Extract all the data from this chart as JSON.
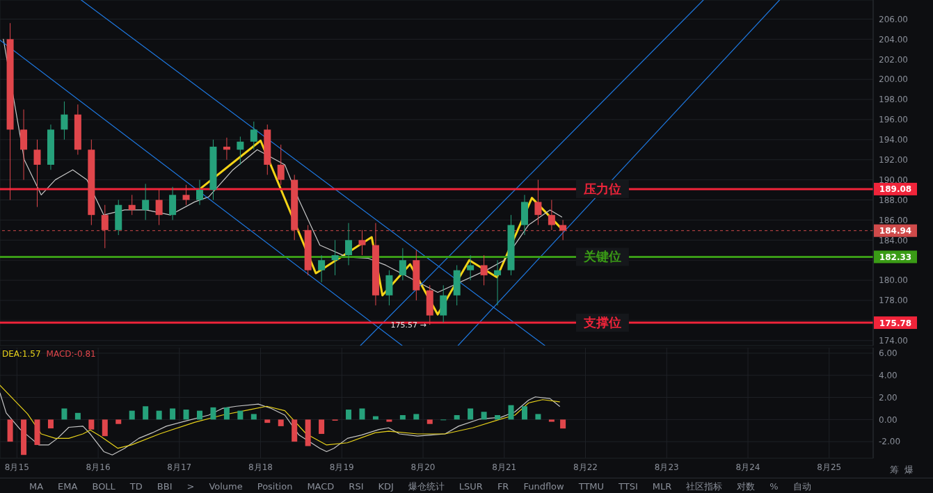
{
  "chart_data": [
    {
      "type": "candlestick",
      "x": [
        "--08-14T22:00",
        "--08-15T02:00",
        "--08-15T06:00",
        "--08-15T10:00",
        "--08-15T14:00",
        "--08-15T18:00",
        "--08-15T22:00",
        "--08-16T02:00",
        "--08-16T06:00",
        "--08-16T10:00",
        "--08-16T14:00",
        "--08-16T18:00",
        "--08-16T22:00",
        "--08-17T02:00",
        "--08-17T06:00",
        "--08-17T10:00",
        "--08-17T14:00",
        "--08-17T18:00",
        "--08-17T22:00",
        "--08-18T02:00",
        "--08-18T06:00",
        "--08-18T10:00",
        "--08-18T14:00",
        "--08-18T18:00",
        "--08-18T22:00",
        "--08-19T02:00",
        "--08-19T06:00",
        "--08-19T10:00",
        "--08-19T14:00",
        "--08-19T18:00",
        "--08-19T22:00",
        "--08-20T02:00",
        "--08-20T06:00",
        "--08-20T10:00",
        "--08-20T14:00",
        "--08-20T18:00",
        "--08-20T22:00",
        "--08-21T02:00",
        "--08-21T06:00",
        "--08-21T10:00",
        "--08-21T14:00",
        "--08-21T17:20"
      ],
      "ohlc": [
        [
          204,
          205.6,
          188,
          195
        ],
        [
          195,
          197,
          190,
          193
        ],
        [
          193,
          194,
          187.3,
          191.5
        ],
        [
          191.5,
          195.5,
          191,
          195
        ],
        [
          195,
          197.8,
          194,
          196.5
        ],
        [
          196.5,
          197.5,
          192.5,
          193
        ],
        [
          193,
          194,
          185.5,
          186.5
        ],
        [
          186.5,
          187.5,
          183.2,
          185
        ],
        [
          185,
          188,
          184.5,
          187.5
        ],
        [
          187.5,
          188.5,
          186.5,
          187
        ],
        [
          187,
          189.6,
          186,
          188
        ],
        [
          188,
          189,
          185.5,
          186.5
        ],
        [
          186.5,
          189.3,
          186,
          188.5
        ],
        [
          188.5,
          189.5,
          187.5,
          188
        ],
        [
          188,
          190,
          187.5,
          189
        ],
        [
          189,
          194,
          188,
          193.3
        ],
        [
          193.3,
          194.2,
          192,
          193
        ],
        [
          193,
          194.3,
          191.5,
          193.8
        ],
        [
          193.8,
          195.8,
          193,
          195
        ],
        [
          195,
          195.5,
          190.5,
          191.5
        ],
        [
          191.5,
          193.5,
          189.5,
          190
        ],
        [
          190,
          190.5,
          184,
          185
        ],
        [
          185,
          185.5,
          180.5,
          181
        ],
        [
          181,
          182.5,
          179.8,
          182
        ],
        [
          182,
          184,
          180.5,
          182.5
        ],
        [
          182.5,
          185.7,
          181.5,
          184
        ],
        [
          184,
          185,
          182.5,
          183.5
        ],
        [
          183.5,
          185.7,
          177.5,
          178.5
        ],
        [
          178.5,
          181,
          177.5,
          180.5
        ],
        [
          180.5,
          183.2,
          180,
          182
        ],
        [
          182,
          183,
          178,
          179
        ],
        [
          179,
          179.5,
          175.57,
          176.5
        ],
        [
          176.5,
          179.5,
          175.8,
          178.5
        ],
        [
          178.5,
          181.5,
          177.5,
          181
        ],
        [
          181,
          182.5,
          180,
          181.5
        ],
        [
          181.5,
          182.5,
          179.5,
          180.5
        ],
        [
          180.5,
          182,
          177.5,
          181
        ],
        [
          181,
          186.5,
          180.5,
          185.5
        ],
        [
          185.5,
          188.5,
          184.5,
          187.8
        ],
        [
          187.8,
          190,
          185.5,
          186.5
        ],
        [
          186.5,
          188,
          185,
          185.5
        ],
        [
          185.5,
          186,
          184,
          184.94
        ]
      ],
      "colors": [
        "#e0464b",
        "#e0464b",
        "#e0464b",
        "#26a17b",
        "#26a17b",
        "#e0464b",
        "#e0464b",
        "#e0464b",
        "#26a17b",
        "#e0464b",
        "#26a17b",
        "#e0464b",
        "#26a17b",
        "#e0464b",
        "#26a17b",
        "#26a17b",
        "#e0464b",
        "#26a17b",
        "#26a17b",
        "#e0464b",
        "#e0464b",
        "#e0464b",
        "#e0464b",
        "#26a17b",
        "#26a17b",
        "#26a17b",
        "#e0464b",
        "#e0464b",
        "#26a17b",
        "#26a17b",
        "#e0464b",
        "#e0464b",
        "#26a17b",
        "#26a17b",
        "#26a17b",
        "#e0464b",
        "#26a17b",
        "#26a17b",
        "#26a17b",
        "#e0464b",
        "#e0464b",
        "#e0464b"
      ],
      "series": [
        {
          "type": "line",
          "color": "#f5d416",
          "x": [
            "--08-17T06:30",
            "--08-18T00:00",
            "--08-18T16:20",
            "--08-19T08:50",
            "--08-19T12:00",
            "--08-19T20:10",
            "--08-20T04:20",
            "--08-20T13:40",
            "--08-20T21:50",
            "--08-21T08:10",
            "--08-21T17:00"
          ],
          "values": [
            189.2,
            193.9,
            180.7,
            184.3,
            178.5,
            181.6,
            176.6,
            182,
            180.3,
            188.2,
            185.1
          ]
        },
        {
          "type": "line",
          "color": "#c8c8c8",
          "x": [
            "--08-14T20:00",
            "--08-15T02:10",
            "--08-15T07:10",
            "--08-15T11:20",
            "--08-15T16:30",
            "--08-15T20:40",
            "--08-16T01:40",
            "--08-16T07:50",
            "--08-16T14:10",
            "--08-16T21:20",
            "--08-17T04:30",
            "--08-17T08:40",
            "--08-17T15:50",
            "--08-17T23:00",
            "--08-18T07:10",
            "--08-18T11:20",
            "--08-18T17:30",
            "--08-19T01:40",
            "--08-19T07:40",
            "--08-19T13:00",
            "--08-20T04:20",
            "--08-20T18:40",
            "--08-21T00:00",
            "--08-21T07:10",
            "--08-21T13:30",
            "--08-21T17:00"
          ],
          "values": [
            204,
            192,
            188.5,
            190,
            191,
            190,
            186.5,
            187,
            187,
            186.5,
            187.8,
            188.3,
            191,
            193,
            191.5,
            188,
            183.5,
            182.3,
            182.2,
            181.5,
            178.8,
            181,
            182,
            185.5,
            187,
            186.3
          ]
        },
        {
          "type": "line",
          "color": "#1e78e0",
          "x": [
            "--08-15T19:00",
            "--08-21T12:00"
          ],
          "values": [
            207.9,
            173.5
          ]
        },
        {
          "type": "line",
          "color": "#1e78e0",
          "x": [
            "--08-14T19:00",
            "--08-19T17:50"
          ],
          "values": [
            203.9,
            173.5
          ]
        },
        {
          "type": "line",
          "color": "#1e78e0",
          "x": [
            "--08-20T10:20",
            "--08-24T09:20"
          ],
          "values": [
            173.5,
            207.9
          ]
        },
        {
          "type": "line",
          "color": "#1e78e0",
          "x": [
            "--08-19T05:30",
            "--08-23T10:50"
          ],
          "values": [
            173.5,
            207.9
          ]
        }
      ],
      "ref_lines": [
        {
          "axis": "y",
          "value": 189.08,
          "label": "压力位",
          "color": "#f0243a"
        },
        {
          "axis": "y",
          "value": 184.94,
          "label": null,
          "color": "#cf4a4a",
          "line_style": "dashed"
        },
        {
          "axis": "y",
          "value": 182.33,
          "label": "关键位",
          "color": "#3a9b16"
        },
        {
          "axis": "y",
          "value": 175.78,
          "label": "支撑位",
          "color": "#f0243a"
        }
      ],
      "annotations": [
        {
          "text": "175.57 →",
          "x": "--08-20T02:00",
          "y": 175.57
        },
        "189.08",
        "184.94",
        "182.33",
        "175.78"
      ],
      "xlim": [
        "--08-14T19:00",
        "--08-25T13:00"
      ],
      "xticks": [
        {
          "value": "--08-15",
          "label": null
        },
        {
          "value": "--08-16",
          "label": null
        },
        {
          "value": "--08-17",
          "label": null
        },
        {
          "value": "--08-18",
          "label": null
        },
        {
          "value": "--08-19",
          "label": null
        },
        {
          "value": "--08-20",
          "label": null
        },
        {
          "value": "--08-21",
          "label": null
        },
        {
          "value": "--08-22",
          "label": null
        },
        {
          "value": "--08-23",
          "label": null
        },
        {
          "value": "--08-24",
          "label": null
        },
        {
          "value": "--08-25",
          "label": null
        }
      ],
      "ylim": [
        173.5,
        207.9
      ],
      "yticks": [
        {
          "value": 174,
          "label": "174.00"
        },
        {
          "value": 176,
          "label": null
        },
        {
          "value": 178,
          "label": "178.00"
        },
        {
          "value": 180,
          "label": "180.00"
        },
        {
          "value": 182,
          "label": null
        },
        {
          "value": 184,
          "label": "184.00"
        },
        {
          "value": 186,
          "label": "186.00"
        },
        {
          "value": 188,
          "label": "188.00"
        },
        {
          "value": 190,
          "label": "190.00"
        },
        {
          "value": 192,
          "label": "192.00"
        },
        {
          "value": 194,
          "label": "194.00"
        },
        {
          "value": 196,
          "label": "196.00"
        },
        {
          "value": 198,
          "label": "198.00"
        },
        {
          "value": 200,
          "label": "200.00"
        },
        {
          "value": 202,
          "label": "202.00"
        },
        {
          "value": 204,
          "label": "204.00"
        },
        {
          "value": 206,
          "label": "206.00"
        }
      ],
      "grid": true,
      "tick_labels": "y"
    },
    {
      "type": "bar",
      "x": [
        "--08-14T22:00",
        "--08-15T02:00",
        "--08-15T06:00",
        "--08-15T10:00",
        "--08-15T14:00",
        "--08-15T18:00",
        "--08-15T22:00",
        "--08-16T02:00",
        "--08-16T06:00",
        "--08-16T10:00",
        "--08-16T14:00",
        "--08-16T18:00",
        "--08-16T22:00",
        "--08-17T02:00",
        "--08-17T06:00",
        "--08-17T10:00",
        "--08-17T14:00",
        "--08-17T18:00",
        "--08-17T22:00",
        "--08-18T02:00",
        "--08-18T06:00",
        "--08-18T10:00",
        "--08-18T14:00",
        "--08-18T18:00",
        "--08-18T22:00",
        "--08-19T02:00",
        "--08-19T06:00",
        "--08-19T10:00",
        "--08-19T14:00",
        "--08-19T18:00",
        "--08-19T22:00",
        "--08-20T02:00",
        "--08-20T06:00",
        "--08-20T10:00",
        "--08-20T14:00",
        "--08-20T18:00",
        "--08-20T22:00",
        "--08-21T02:00",
        "--08-21T06:00",
        "--08-21T10:00",
        "--08-21T14:00",
        "--08-21T17:20"
      ],
      "values": [
        -2.0,
        -3.2,
        -2.3,
        -0.8,
        1.0,
        0.6,
        -0.9,
        -1.5,
        -0.4,
        0.8,
        1.2,
        0.8,
        1.0,
        0.9,
        0.8,
        1.1,
        1.1,
        0.8,
        0.5,
        -0.3,
        -0.6,
        -2.0,
        -2.4,
        -1.3,
        -0.1,
        0.9,
        1.0,
        0.3,
        -0.2,
        0.4,
        0.5,
        -0.4,
        0,
        0.4,
        1.0,
        0.7,
        0.4,
        1.3,
        1.2,
        0.5,
        -0.2,
        -0.81
      ],
      "colors": [
        "#e0464b",
        "#e0464b",
        "#e0464b",
        "#e0464b",
        "#26a17b",
        "#26a17b",
        "#e0464b",
        "#e0464b",
        "#e0464b",
        "#26a17b",
        "#26a17b",
        "#26a17b",
        "#26a17b",
        "#26a17b",
        "#26a17b",
        "#26a17b",
        "#26a17b",
        "#26a17b",
        "#26a17b",
        "#e0464b",
        "#e0464b",
        "#e0464b",
        "#e0464b",
        "#e0464b",
        "#e0464b",
        "#26a17b",
        "#26a17b",
        "#26a17b",
        "#e0464b",
        "#26a17b",
        "#26a17b",
        "#e0464b",
        "#26a17b",
        "#26a17b",
        "#26a17b",
        "#26a17b",
        "#26a17b",
        "#26a17b",
        "#26a17b",
        "#26a17b",
        "#e0464b",
        "#e0464b"
      ],
      "series": [
        {
          "type": "line",
          "color": "#c8c8c8",
          "x": [
            "--08-14T19:00",
            "--08-14T20:50",
            "--08-15T01:00",
            "--08-15T04:10",
            "--08-15T06:30",
            "--08-15T09:20",
            "--08-15T12:00",
            "--08-15T15:20",
            "--08-15T19:30",
            "--08-15T21:40",
            "--08-16T01:40",
            "--08-16T04:10",
            "--08-16T07:50",
            "--08-16T12:00",
            "--08-16T16:00",
            "--08-16T20:10",
            "--08-17T02:20",
            "--08-17T08:40",
            "--08-17T12:40",
            "--08-17T16:50",
            "--08-17T23:20",
            "--08-18T03:10",
            "--08-18T07:10",
            "--08-18T11:20",
            "--08-18T17:30",
            "--08-18T19:30",
            "--08-18T21:40",
            "--08-19T01:40",
            "--08-19T05:50",
            "--08-19T11:00",
            "--08-19T13:50",
            "--08-19T17:00",
            "--08-19T22:20",
            "--08-20T02:20",
            "--08-20T06:30",
            "--08-20T10:30",
            "--08-20T16:50",
            "--08-20T23:00",
            "--08-21T03:10",
            "--08-21T07:10",
            "--08-21T09:10",
            "--08-21T13:30",
            "--08-21T16:20"
          ],
          "values": [
            2.4,
            0.6,
            -0.9,
            -1.7,
            -2.3,
            -2.3,
            -1.7,
            -0.7,
            -0.6,
            -1.3,
            -2.9,
            -3.2,
            -2.6,
            -1.7,
            -1.2,
            -0.6,
            -0.1,
            0.4,
            1.0,
            1.2,
            1.4,
            1.0,
            0.4,
            -1.4,
            -2.6,
            -2.9,
            -2.6,
            -1.7,
            -1.4,
            -0.9,
            -0.75,
            -1.3,
            -1.5,
            -1.4,
            -1.3,
            -0.6,
            0.05,
            0.2,
            0.7,
            1.75,
            2.05,
            1.9,
            1.2
          ]
        },
        {
          "type": "line",
          "color": "#e8d21a",
          "x": [
            "--08-14T19:00",
            "--08-15T03:10",
            "--08-15T07:10",
            "--08-15T11:20",
            "--08-15T15:20",
            "--08-15T19:30",
            "--08-15T21:40",
            "--08-16T00:40",
            "--08-16T05:50",
            "--08-16T09:50",
            "--08-16T18:10",
            "--08-17T04:30",
            "--08-17T12:40",
            "--08-17T20:50",
            "--08-18T01:50",
            "--08-18T07:10",
            "--08-18T13:30",
            "--08-18T19:30",
            "--08-19T01:40",
            "--08-19T09:50",
            "--08-19T13:50",
            "--08-19T22:20",
            "--08-20T06:30",
            "--08-20T14:40",
            "--08-20T23:00",
            "--08-21T03:10",
            "--08-21T07:10",
            "--08-21T11:20",
            "--08-21T16:20"
          ],
          "values": [
            3.1,
            0.5,
            -1.3,
            -1.7,
            -1.7,
            -1.3,
            -0.95,
            -1.5,
            -2.6,
            -2.3,
            -1.3,
            -0.25,
            0.4,
            0.9,
            1.2,
            0.8,
            -1.3,
            -2.3,
            -2.1,
            -1.2,
            -1.05,
            -1.3,
            -1.3,
            -0.75,
            0.05,
            0.4,
            1.5,
            1.8,
            1.6
          ]
        }
      ],
      "annotations": [
        "DEA:1.57",
        "MACD:-0.81",
        "筹",
        "爆",
        "MA",
        "EMA",
        "BOLL",
        "TD",
        "BBI",
        ">",
        "Volume",
        "Position",
        "MACD",
        "RSI",
        "KDJ",
        "爆仓统计",
        "LSUR",
        "FR",
        "Fundflow",
        "TTMU",
        "TTSI",
        "MLR",
        "社区指标",
        "对数",
        "%",
        "自动"
      ],
      "xlim": [
        "--08-14T19:00",
        "--08-25T13:00"
      ],
      "xticks": [
        {
          "value": "--08-15",
          "label": "8月15"
        },
        {
          "value": "--08-16",
          "label": "8月16"
        },
        {
          "value": "--08-17",
          "label": "8月17"
        },
        {
          "value": "--08-18",
          "label": "8月18"
        },
        {
          "value": "--08-19",
          "label": "8月19"
        },
        {
          "value": "--08-20",
          "label": "8月20"
        },
        {
          "value": "--08-21",
          "label": "8月21"
        },
        {
          "value": "--08-22",
          "label": "8月22"
        },
        {
          "value": "--08-23",
          "label": "8月23"
        },
        {
          "value": "--08-24",
          "label": "8月24"
        },
        {
          "value": "--08-25",
          "label": "8月25"
        }
      ],
      "ylim": [
        -3.5,
        6.5
      ],
      "yticks": [
        {
          "value": -2,
          "label": "-2.00"
        },
        {
          "value": 0,
          "label": "0.00"
        },
        {
          "value": 2,
          "label": "2.00"
        },
        {
          "value": 4,
          "label": "4.00"
        },
        {
          "value": 6,
          "label": "6.00"
        }
      ],
      "grid": true
    }
  ]
}
